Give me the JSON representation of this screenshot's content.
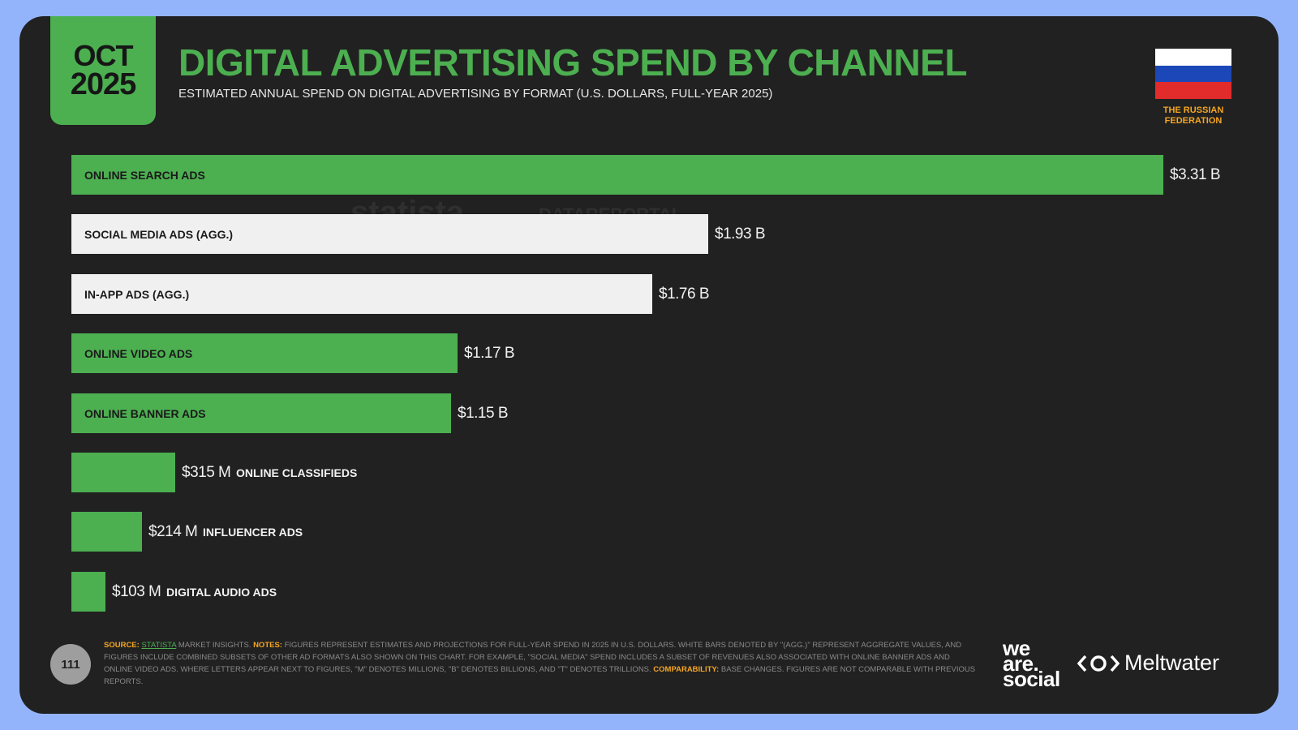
{
  "header": {
    "date_month": "OCT",
    "date_year": "2025",
    "title": "DIGITAL ADVERTISING SPEND BY CHANNEL",
    "subtitle": "ESTIMATED ANNUAL SPEND ON DIGITAL ADVERTISING BY FORMAT (U.S. DOLLARS, FULL-YEAR 2025)",
    "country": "THE RUSSIAN FEDERATION",
    "flag_colors": [
      "#ffffff",
      "#1c47b8",
      "#e22b2b"
    ]
  },
  "watermark": {
    "brand1": "statista",
    "brand2": "DATAREPORTAL"
  },
  "colors": {
    "green": "#4caf50",
    "white_bar": "#f0f0f0",
    "background": "#212121",
    "accent_orange": "#f5a623"
  },
  "chart_data": {
    "type": "bar",
    "orientation": "horizontal",
    "unit": "U.S. DOLLARS",
    "max_value": 3.31,
    "items": [
      {
        "label": "ONLINE SEARCH ADS",
        "value": 3.31,
        "display": "$3.31 B",
        "kind": "green"
      },
      {
        "label": "SOCIAL MEDIA ADS (AGG.)",
        "value": 1.93,
        "display": "$1.93 B",
        "kind": "white"
      },
      {
        "label": "IN-APP ADS (AGG.)",
        "value": 1.76,
        "display": "$1.76 B",
        "kind": "white"
      },
      {
        "label": "ONLINE VIDEO ADS",
        "value": 1.17,
        "display": "$1.17 B",
        "kind": "green"
      },
      {
        "label": "ONLINE BANNER ADS",
        "value": 1.15,
        "display": "$1.15 B",
        "kind": "green"
      },
      {
        "label": "ONLINE CLASSIFIEDS",
        "value": 0.315,
        "display": "$315 M",
        "kind": "green"
      },
      {
        "label": "INFLUENCER ADS",
        "value": 0.214,
        "display": "$214 M",
        "kind": "green"
      },
      {
        "label": "DIGITAL AUDIO ADS",
        "value": 0.103,
        "display": "$103 M",
        "kind": "green"
      }
    ]
  },
  "footer": {
    "page_number": "111",
    "source_key": "SOURCE:",
    "source_link": "STATISTA",
    "source_text": " MARKET INSIGHTS. ",
    "notes_key": "NOTES:",
    "notes_text": " FIGURES REPRESENT ESTIMATES AND PROJECTIONS FOR FULL-YEAR SPEND IN 2025 IN U.S. DOLLARS. WHITE BARS DENOTED BY \"(AGG.)\" REPRESENT AGGREGATE VALUES, AND FIGURES INCLUDE COMBINED SUBSETS OF OTHER AD FORMATS ALSO SHOWN ON THIS CHART. FOR EXAMPLE, \"SOCIAL MEDIA\" SPEND INCLUDES A SUBSET OF REVENUES ALSO ASSOCIATED WITH ONLINE BANNER ADS AND ONLINE VIDEO ADS. WHERE LETTERS APPEAR NEXT TO FIGURES, \"M\" DENOTES MILLIONS, \"B\" DENOTES BILLIONS, AND \"T\" DENOTES TRILLIONS. ",
    "comparability_key": "COMPARABILITY:",
    "comparability_text": " BASE CHANGES. FIGURES ARE NOT COMPARABLE WITH PREVIOUS REPORTS.",
    "logo_was_1": "we",
    "logo_was_2": "are.",
    "logo_was_3": "social",
    "logo_meltwater": "Meltwater"
  }
}
